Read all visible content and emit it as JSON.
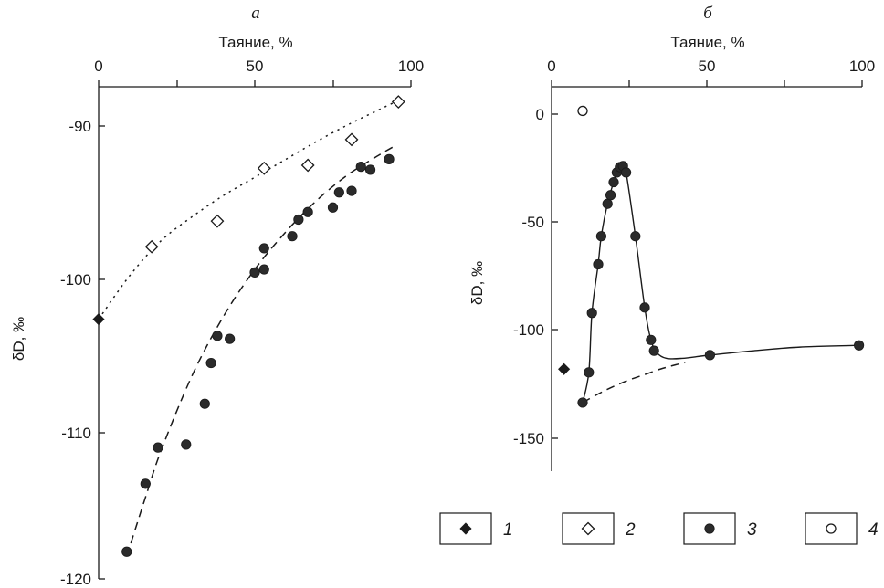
{
  "chart_data": [
    {
      "panel": "a",
      "type": "scatter",
      "title": "а",
      "xlabel": "Таяние, %",
      "ylabel": "δD, ‰",
      "xlim": [
        0,
        100
      ],
      "ylim": [
        -120,
        -87
      ],
      "x_ticks": [
        0,
        50,
        100
      ],
      "y_ticks": [
        -90,
        -100,
        -110,
        -120
      ],
      "x_minor_ticks": [
        25,
        75
      ],
      "x_axis_position": "top",
      "series": [
        {
          "legend": "1",
          "marker": "filled-diamond",
          "points": [
            [
              0,
              -102.8
            ]
          ]
        },
        {
          "legend": "2",
          "marker": "open-diamond",
          "points": [
            [
              17,
              -98
            ],
            [
              38,
              -96.3
            ],
            [
              53,
              -92.8
            ],
            [
              67,
              -92.6
            ],
            [
              81,
              -90.9
            ],
            [
              96,
              -88.4
            ]
          ]
        },
        {
          "legend": "3",
          "marker": "filled-circle",
          "points": [
            [
              9,
              -118.2
            ],
            [
              15,
              -113.7
            ],
            [
              19,
              -111.3
            ],
            [
              28,
              -111.1
            ],
            [
              34,
              -108.4
            ],
            [
              36,
              -105.7
            ],
            [
              38,
              -103.9
            ],
            [
              42,
              -104.1
            ],
            [
              50,
              -99.7
            ],
            [
              53,
              -99.5
            ],
            [
              53,
              -98.1
            ],
            [
              62,
              -97.3
            ],
            [
              64,
              -96.2
            ],
            [
              67,
              -95.7
            ],
            [
              75,
              -95.4
            ],
            [
              77,
              -94.4
            ],
            [
              81,
              -94.3
            ],
            [
              84,
              -92.7
            ],
            [
              87,
              -92.9
            ],
            [
              93,
              -92.2
            ]
          ]
        }
      ],
      "curves": [
        {
          "style": "dotted",
          "fit_of": "2",
          "points": [
            [
              0,
              -102.8
            ],
            [
              10,
              -99.9
            ],
            [
              20,
              -97.6
            ],
            [
              30,
              -96.0
            ],
            [
              40,
              -94.6
            ],
            [
              50,
              -93.4
            ],
            [
              60,
              -92.2
            ],
            [
              70,
              -91.0
            ],
            [
              80,
              -89.9
            ],
            [
              90,
              -88.9
            ],
            [
              96,
              -88.3
            ]
          ]
        },
        {
          "style": "dashed",
          "fit_of": "3",
          "points": [
            [
              9,
              -118.5
            ],
            [
              15,
              -114.6
            ],
            [
              20,
              -111.5
            ],
            [
              30,
              -106.5
            ],
            [
              40,
              -102.6
            ],
            [
              50,
              -99.5
            ],
            [
              60,
              -97.0
            ],
            [
              70,
              -94.9
            ],
            [
              80,
              -93.2
            ],
            [
              90,
              -91.9
            ],
            [
              95,
              -91.3
            ]
          ]
        }
      ]
    },
    {
      "panel": "b",
      "type": "scatter",
      "title": "б",
      "xlabel": "Таяние, %",
      "ylabel": "δD, ‰",
      "xlim": [
        0,
        100
      ],
      "ylim": [
        -160,
        12
      ],
      "x_ticks": [
        0,
        50,
        100
      ],
      "y_ticks": [
        0,
        -50,
        -100,
        -150
      ],
      "x_minor_ticks": [
        25,
        75
      ],
      "x_axis_position": "top",
      "series": [
        {
          "legend": "1",
          "marker": "filled-diamond",
          "points": [
            [
              4,
              -118
            ]
          ]
        },
        {
          "legend": "4",
          "marker": "open-circle",
          "points": [
            [
              10,
              1.5
            ]
          ]
        },
        {
          "legend": "3",
          "marker": "filled-circle",
          "points": [
            [
              10,
              -133.5
            ],
            [
              12,
              -119.5
            ],
            [
              13,
              -92
            ],
            [
              15,
              -69.5
            ],
            [
              16,
              -56.5
            ],
            [
              18,
              -41.5
            ],
            [
              19,
              -37.5
            ],
            [
              20,
              -31.5
            ],
            [
              21,
              -27
            ],
            [
              22,
              -24.5
            ],
            [
              23,
              -24
            ],
            [
              24,
              -27
            ],
            [
              27,
              -56.5
            ],
            [
              30,
              -89.5
            ],
            [
              32,
              -104.5
            ],
            [
              33,
              -109.5
            ],
            [
              51,
              -111.5
            ],
            [
              99,
              -107
            ]
          ]
        }
      ],
      "curves": [
        {
          "style": "solid",
          "points": [
            [
              10,
              -133.5
            ],
            [
              12,
              -119.5
            ],
            [
              13,
              -92
            ],
            [
              15,
              -69.5
            ],
            [
              16,
              -56.5
            ],
            [
              18,
              -41.5
            ],
            [
              20,
              -31.5
            ],
            [
              22,
              -24.5
            ],
            [
              23,
              -24
            ],
            [
              24,
              -27
            ],
            [
              27,
              -56.5
            ],
            [
              30,
              -89.5
            ],
            [
              32,
              -104.5
            ],
            [
              34,
              -110.5
            ],
            [
              37,
              -113
            ],
            [
              42,
              -113
            ],
            [
              51,
              -111.5
            ],
            [
              65,
              -109.5
            ],
            [
              80,
              -107.8
            ],
            [
              99,
              -107
            ]
          ]
        },
        {
          "style": "dashed",
          "points": [
            [
              10,
              -133.5
            ],
            [
              15,
              -129.5
            ],
            [
              20,
              -126
            ],
            [
              25,
              -123
            ],
            [
              30,
              -120.5
            ],
            [
              35,
              -118
            ],
            [
              40,
              -116
            ],
            [
              43,
              -115
            ]
          ]
        }
      ]
    }
  ],
  "legend": [
    {
      "number": "1",
      "marker": "filled-diamond"
    },
    {
      "number": "2",
      "marker": "open-diamond"
    },
    {
      "number": "3",
      "marker": "filled-circle"
    },
    {
      "number": "4",
      "marker": "open-circle"
    }
  ],
  "colors": {
    "ink": "#1a1a1a",
    "marker_fill": "#2b2b2b",
    "background": "#ffffff"
  }
}
